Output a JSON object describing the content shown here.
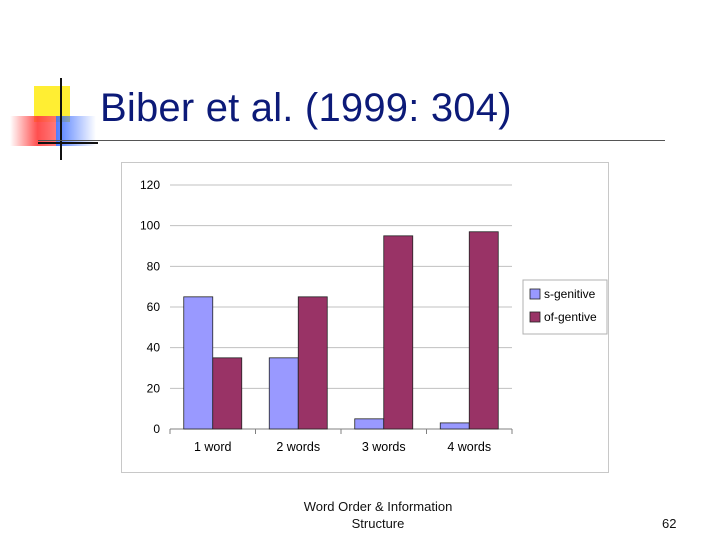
{
  "slide": {
    "title": "Biber et al. (1999: 304)",
    "footer_line1": "Word Order & Information",
    "footer_line2": "Structure",
    "page_number": "62"
  },
  "colors": {
    "title": "#0c1a78",
    "s_genitive": "#9999ff",
    "of_gentive": "#993366",
    "accent_yellow": "#ffee33",
    "accent_red": "#ff3b3b",
    "accent_blue": "#3a6cff"
  },
  "chart_data": {
    "type": "bar",
    "categories": [
      "1 word",
      "2 words",
      "3 words",
      "4 words"
    ],
    "series": [
      {
        "name": "s-genitive",
        "color": "#9999ff",
        "values": [
          65,
          35,
          5,
          3
        ]
      },
      {
        "name": "of-gentive",
        "color": "#993366",
        "values": [
          35,
          65,
          95,
          97
        ]
      }
    ],
    "yticks": [
      "0",
      "20",
      "40",
      "60",
      "80",
      "100",
      "120"
    ],
    "ylim": [
      0,
      120
    ],
    "title": "",
    "xlabel": "",
    "ylabel": "",
    "grid": true,
    "legend_position": "right"
  }
}
